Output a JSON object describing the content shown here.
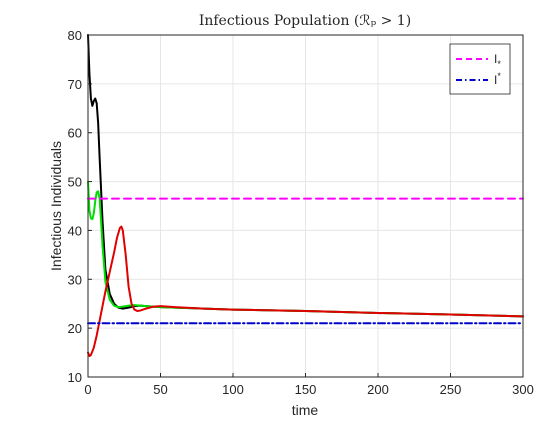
{
  "chart_data": {
    "type": "line",
    "title": "Infectious Population (ℛₚ > 1)",
    "xlabel": "time",
    "ylabel": "Infectious Individuals",
    "xlim": [
      0,
      300
    ],
    "ylim": [
      10,
      80
    ],
    "xticks": [
      0,
      50,
      100,
      150,
      200,
      250,
      300
    ],
    "yticks": [
      10,
      20,
      30,
      40,
      50,
      60,
      70,
      80
    ],
    "grid": true,
    "legend_position": "top-right",
    "series": [
      {
        "color": "#000000",
        "style": "solid",
        "x": [
          0,
          1,
          2,
          3,
          4,
          5,
          6,
          7,
          8,
          10,
          12,
          15,
          18,
          21,
          24,
          28,
          32,
          36,
          40,
          45,
          50,
          60,
          80,
          100,
          150,
          200,
          250,
          300
        ],
        "y": [
          80,
          72,
          67,
          65.5,
          66.5,
          67,
          66,
          62,
          55,
          42,
          32,
          27,
          25,
          24.2,
          24,
          24.2,
          24.5,
          24.6,
          24.5,
          24.4,
          24.3,
          24.2,
          24.0,
          23.8,
          23.5,
          23.1,
          22.8,
          22.4
        ]
      },
      {
        "color": "#00dd00",
        "style": "solid",
        "x": [
          0,
          1,
          2,
          3,
          4,
          5,
          6,
          7,
          8,
          9,
          10,
          12,
          15,
          18,
          21,
          24,
          28,
          32,
          36,
          40,
          45,
          50,
          60,
          80,
          100,
          150,
          200,
          250,
          300
        ],
        "y": [
          50,
          44,
          42.5,
          42.3,
          43.5,
          46,
          47.8,
          48,
          46.5,
          42,
          37,
          29.5,
          25.8,
          24.6,
          24.3,
          24.4,
          24.6,
          24.7,
          24.6,
          24.5,
          24.4,
          24.3,
          24.2,
          24.0,
          23.8,
          23.5,
          23.1,
          22.8,
          22.4
        ]
      },
      {
        "color": "#e00000",
        "style": "solid",
        "x": [
          0,
          1,
          2,
          4,
          6,
          8,
          10,
          12,
          15,
          18,
          20,
          22,
          23,
          24,
          26,
          28,
          30,
          32,
          34,
          36,
          40,
          45,
          50,
          55,
          60,
          80,
          100,
          150,
          200,
          250,
          300
        ],
        "y": [
          15,
          14.3,
          14.5,
          16,
          18.5,
          21.5,
          24.5,
          27.5,
          31.5,
          35.5,
          38.5,
          40.5,
          40.8,
          40,
          35,
          28.5,
          25,
          23.8,
          23.5,
          23.6,
          24,
          24.4,
          24.5,
          24.4,
          24.3,
          24.0,
          23.8,
          23.5,
          23.1,
          22.8,
          22.4
        ]
      },
      {
        "name": "Iₓ",
        "color": "#ff00ff",
        "style": "dashed",
        "x": [
          0,
          300
        ],
        "y": [
          46.5,
          46.5
        ]
      },
      {
        "name": "I*",
        "color": "#0000cc",
        "style": "dashdot",
        "x": [
          0,
          300
        ],
        "y": [
          21,
          21
        ]
      }
    ],
    "legend": [
      {
        "label_main": "I",
        "label_sub": "*",
        "color": "#ff00ff",
        "style": "dashed"
      },
      {
        "label_main": "I",
        "label_sup": "*",
        "color": "#0000cc",
        "style": "dashdot"
      }
    ]
  }
}
